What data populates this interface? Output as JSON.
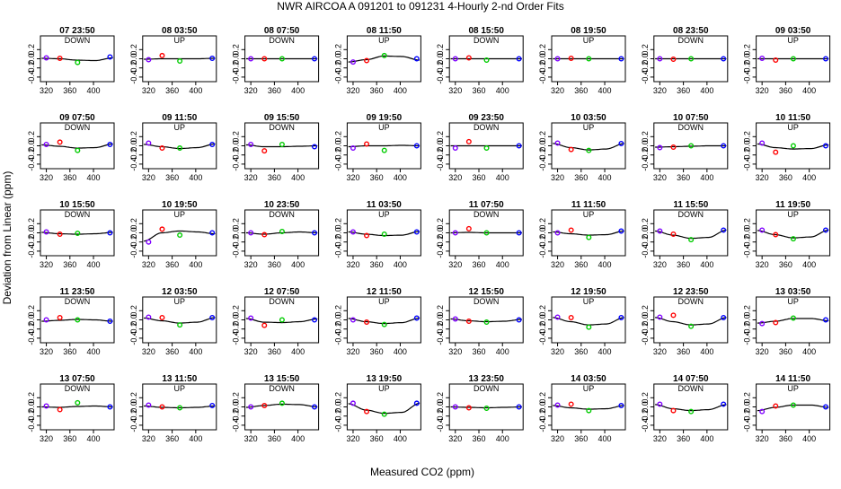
{
  "chart_data": {
    "type": "scatter",
    "title": "NWR   AIRCOA A    091201 to 091231   4-Hourly 2-nd Order Fits",
    "xlabel": "Measured CO2 (ppm)",
    "ylabel": "Deviation from Linear (ppm)",
    "xlim": [
      310,
      435
    ],
    "ylim": [
      -0.5,
      0.5
    ],
    "xticks": [
      320,
      360,
      400
    ],
    "yticks": [
      -0.4,
      -0.2,
      0.0,
      0.2
    ],
    "ytick_labels": [
      "-0.4",
      "-0.2",
      "0.0",
      "0.2"
    ],
    "point_x": [
      320,
      343,
      373,
      428
    ],
    "series_colors": [
      "#7f00ff",
      "#ff0000",
      "#00cc00",
      "#0000ff"
    ],
    "panels": [
      {
        "title": "07 23:50",
        "mode": "DOWN",
        "y": [
          0.02,
          0.01,
          -0.08,
          0.04
        ],
        "fit": [
          0.01,
          0.0,
          -0.03,
          -0.04,
          0.02
        ]
      },
      {
        "title": "08 03:50",
        "mode": "UP",
        "y": [
          -0.02,
          0.07,
          -0.05,
          0.01
        ],
        "fit": [
          -0.01,
          0.0,
          0.0,
          0.0,
          0.01
        ]
      },
      {
        "title": "08 07:50",
        "mode": "DOWN",
        "y": [
          0.0,
          0.0,
          0.0,
          0.0
        ],
        "fit": [
          0.0,
          0.0,
          0.0,
          0.0,
          0.0
        ]
      },
      {
        "title": "08 11:50",
        "mode": "UP",
        "y": [
          -0.07,
          -0.04,
          0.07,
          0.0
        ],
        "fit": [
          -0.07,
          -0.02,
          0.06,
          0.05,
          -0.03
        ]
      },
      {
        "title": "08 15:50",
        "mode": "DOWN",
        "y": [
          0.0,
          0.02,
          -0.03,
          0.0
        ],
        "fit": [
          0.0,
          0.0,
          0.0,
          0.0,
          0.0
        ]
      },
      {
        "title": "08 19:50",
        "mode": "UP",
        "y": [
          0.0,
          0.01,
          0.0,
          0.0
        ],
        "fit": [
          0.0,
          0.0,
          0.0,
          0.0,
          0.0
        ]
      },
      {
        "title": "08 23:50",
        "mode": "DOWN",
        "y": [
          0.0,
          -0.01,
          0.0,
          0.0
        ],
        "fit": [
          0.0,
          0.0,
          0.0,
          0.0,
          0.0
        ]
      },
      {
        "title": "09 03:50",
        "mode": "UP",
        "y": [
          0.01,
          -0.03,
          0.0,
          0.0
        ],
        "fit": [
          0.0,
          0.0,
          0.0,
          0.0,
          0.0
        ]
      },
      {
        "title": "09 07:50",
        "mode": "DOWN",
        "y": [
          0.03,
          0.08,
          -0.1,
          0.03
        ],
        "fit": [
          0.02,
          -0.01,
          -0.05,
          -0.04,
          0.04
        ]
      },
      {
        "title": "09 11:50",
        "mode": "UP",
        "y": [
          0.06,
          -0.05,
          -0.05,
          0.03
        ],
        "fit": [
          0.03,
          -0.02,
          -0.06,
          -0.04,
          0.04
        ]
      },
      {
        "title": "09 15:50",
        "mode": "DOWN",
        "y": [
          0.03,
          -0.11,
          0.03,
          -0.02
        ],
        "fit": [
          0.02,
          -0.02,
          -0.02,
          -0.01,
          0.0
        ]
      },
      {
        "title": "09 19:50",
        "mode": "UP",
        "y": [
          -0.05,
          0.04,
          -0.1,
          0.0
        ],
        "fit": [
          -0.02,
          0.0,
          0.0,
          0.01,
          0.0
        ]
      },
      {
        "title": "09 23:50",
        "mode": "DOWN",
        "y": [
          -0.05,
          0.09,
          -0.05,
          0.0
        ],
        "fit": [
          0.0,
          0.0,
          0.0,
          0.0,
          0.0
        ]
      },
      {
        "title": "10 03:50",
        "mode": "UP",
        "y": [
          0.06,
          -0.08,
          -0.1,
          0.05
        ],
        "fit": [
          0.05,
          -0.04,
          -0.09,
          -0.07,
          0.05
        ]
      },
      {
        "title": "10 07:50",
        "mode": "DOWN",
        "y": [
          -0.04,
          -0.03,
          0.0,
          0.0
        ],
        "fit": [
          -0.03,
          -0.02,
          -0.01,
          0.0,
          0.0
        ]
      },
      {
        "title": "10 11:50",
        "mode": "UP",
        "y": [
          0.06,
          -0.14,
          0.0,
          0.0
        ],
        "fit": [
          0.04,
          -0.04,
          -0.07,
          -0.06,
          0.02
        ]
      },
      {
        "title": "10 15:50",
        "mode": "DOWN",
        "y": [
          0.02,
          -0.03,
          -0.01,
          0.0
        ],
        "fit": [
          0.01,
          -0.02,
          -0.03,
          -0.02,
          0.01
        ]
      },
      {
        "title": "10 19:50",
        "mode": "UP",
        "y": [
          -0.2,
          0.08,
          -0.05,
          0.0
        ],
        "fit": [
          -0.18,
          0.0,
          0.04,
          0.02,
          -0.02
        ]
      },
      {
        "title": "10 23:50",
        "mode": "DOWN",
        "y": [
          0.0,
          -0.04,
          0.03,
          0.0
        ],
        "fit": [
          0.0,
          -0.03,
          0.0,
          0.02,
          0.0
        ]
      },
      {
        "title": "11 03:50",
        "mode": "UP",
        "y": [
          0.02,
          -0.06,
          -0.03,
          0.02
        ],
        "fit": [
          0.02,
          -0.03,
          -0.06,
          -0.05,
          0.03
        ]
      },
      {
        "title": "11 07:50",
        "mode": "DOWN",
        "y": [
          0.0,
          0.09,
          0.0,
          0.0
        ],
        "fit": [
          0.0,
          0.01,
          0.0,
          0.0,
          0.0
        ]
      },
      {
        "title": "11 11:50",
        "mode": "UP",
        "y": [
          0.0,
          0.06,
          -0.1,
          0.04
        ],
        "fit": [
          0.02,
          -0.02,
          -0.05,
          -0.04,
          0.04
        ]
      },
      {
        "title": "11 15:50",
        "mode": "DOWN",
        "y": [
          0.04,
          -0.03,
          -0.15,
          0.06
        ],
        "fit": [
          0.04,
          -0.05,
          -0.12,
          -0.1,
          0.06
        ]
      },
      {
        "title": "11 19:50",
        "mode": "UP",
        "y": [
          0.06,
          -0.04,
          -0.13,
          0.06
        ],
        "fit": [
          0.05,
          -0.04,
          -0.11,
          -0.09,
          0.06
        ]
      },
      {
        "title": "11 23:50",
        "mode": "DOWN",
        "y": [
          0.0,
          0.05,
          0.0,
          -0.03
        ],
        "fit": [
          -0.03,
          -0.01,
          0.01,
          0.0,
          -0.03
        ]
      },
      {
        "title": "12 03:50",
        "mode": "UP",
        "y": [
          0.06,
          0.05,
          -0.11,
          0.05
        ],
        "fit": [
          0.04,
          -0.02,
          -0.07,
          -0.05,
          0.05
        ]
      },
      {
        "title": "12 07:50",
        "mode": "DOWN",
        "y": [
          0.04,
          -0.12,
          0.0,
          0.0
        ],
        "fit": [
          0.03,
          -0.05,
          -0.06,
          -0.04,
          0.02
        ]
      },
      {
        "title": "12 11:50",
        "mode": "UP",
        "y": [
          0.0,
          -0.05,
          -0.1,
          0.04
        ],
        "fit": [
          0.03,
          -0.04,
          -0.08,
          -0.06,
          0.04
        ]
      },
      {
        "title": "12 15:50",
        "mode": "DOWN",
        "y": [
          0.02,
          -0.03,
          -0.05,
          0.0
        ],
        "fit": [
          0.02,
          -0.02,
          -0.04,
          -0.03,
          0.01
        ]
      },
      {
        "title": "12 19:50",
        "mode": "UP",
        "y": [
          0.06,
          0.05,
          -0.16,
          0.05
        ],
        "fit": [
          0.05,
          -0.04,
          -0.11,
          -0.09,
          0.05
        ]
      },
      {
        "title": "12 23:50",
        "mode": "DOWN",
        "y": [
          0.06,
          0.1,
          -0.14,
          0.05
        ],
        "fit": [
          0.05,
          -0.04,
          -0.11,
          -0.09,
          0.05
        ]
      },
      {
        "title": "13 03:50",
        "mode": "UP",
        "y": [
          -0.08,
          -0.06,
          0.04,
          0.0
        ],
        "fit": [
          -0.07,
          -0.03,
          0.03,
          0.03,
          -0.02
        ]
      },
      {
        "title": "13 07:50",
        "mode": "DOWN",
        "y": [
          0.02,
          -0.06,
          0.09,
          0.0
        ],
        "fit": [
          0.0,
          -0.01,
          0.01,
          0.02,
          0.0
        ]
      },
      {
        "title": "13 11:50",
        "mode": "UP",
        "y": [
          0.04,
          0.0,
          -0.02,
          0.03
        ],
        "fit": [
          0.02,
          -0.01,
          -0.02,
          -0.01,
          0.02
        ]
      },
      {
        "title": "13 15:50",
        "mode": "DOWN",
        "y": [
          0.0,
          0.03,
          0.08,
          0.0
        ],
        "fit": [
          -0.01,
          0.03,
          0.06,
          0.05,
          0.0
        ]
      },
      {
        "title": "13 19:50",
        "mode": "UP",
        "y": [
          0.08,
          -0.1,
          -0.16,
          0.08
        ],
        "fit": [
          0.07,
          -0.07,
          -0.14,
          -0.12,
          0.08
        ]
      },
      {
        "title": "13 23:50",
        "mode": "DOWN",
        "y": [
          0.0,
          -0.02,
          -0.03,
          0.0
        ],
        "fit": [
          0.0,
          -0.01,
          -0.02,
          -0.01,
          0.0
        ]
      },
      {
        "title": "14 03:50",
        "mode": "UP",
        "y": [
          0.04,
          0.06,
          -0.08,
          0.03
        ],
        "fit": [
          0.03,
          -0.02,
          -0.05,
          -0.04,
          0.03
        ]
      },
      {
        "title": "14 07:50",
        "mode": "DOWN",
        "y": [
          0.06,
          -0.08,
          -0.1,
          0.06
        ],
        "fit": [
          0.05,
          -0.04,
          -0.08,
          -0.06,
          0.05
        ]
      },
      {
        "title": "14 11:50",
        "mode": "UP",
        "y": [
          -0.1,
          0.02,
          0.04,
          0.0
        ],
        "fit": [
          -0.08,
          -0.01,
          0.04,
          0.04,
          -0.01
        ]
      }
    ]
  }
}
